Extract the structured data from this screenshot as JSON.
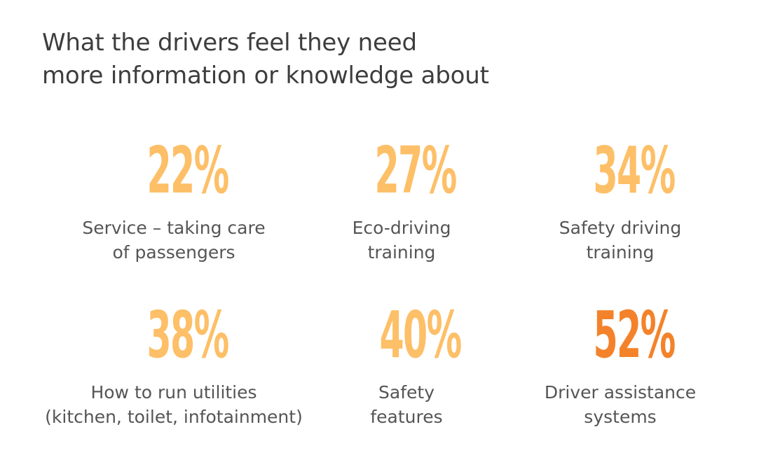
{
  "title": {
    "line1": "What the drivers feel they need",
    "line2": "more information or knowledge about"
  },
  "colors": {
    "light_accent": "#fdbf67",
    "strong_accent": "#f4822a",
    "text": "#555555",
    "title_text": "#3d3d3d"
  },
  "stats": [
    {
      "value": "22%",
      "label_line1": "Service – taking care",
      "label_line2": "of passengers",
      "highlight": false
    },
    {
      "value": "27%",
      "label_line1": "Eco-driving",
      "label_line2": "training",
      "highlight": false
    },
    {
      "value": "34%",
      "label_line1": "Safety driving",
      "label_line2": "training",
      "highlight": false
    },
    {
      "value": "38%",
      "label_line1": "How to run utilities",
      "label_line2": "(kitchen, toilet, infotainment)",
      "highlight": false
    },
    {
      "value": "40%",
      "label_line1": "Safety",
      "label_line2": "features",
      "highlight": false
    },
    {
      "value": "52%",
      "label_line1": "Driver assistance",
      "label_line2": "systems",
      "highlight": true
    }
  ]
}
